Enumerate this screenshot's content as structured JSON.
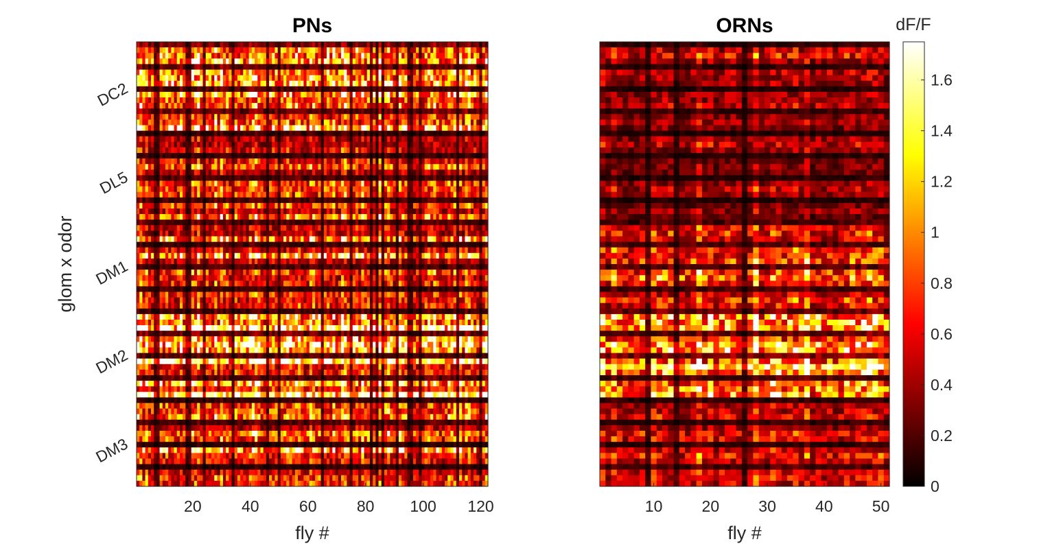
{
  "chart_data": [
    {
      "type": "heatmap",
      "title": "PNs",
      "xlabel": "fly #",
      "ylabel": "glom x odor",
      "x_range": [
        1,
        122
      ],
      "x_ticks": [
        20,
        40,
        60,
        80,
        100,
        120
      ],
      "y_tick_labels": [
        "DC2",
        "DL5",
        "DM1",
        "DM2",
        "DM3"
      ],
      "n_columns": 122,
      "n_rows": 80,
      "value_range": [
        0,
        1.75
      ],
      "note_on_values": "per-cell dF/F values not individually legible; rows grouped by glomerulus, brighter bands = stronger responses"
    },
    {
      "type": "heatmap",
      "title": "ORNs",
      "xlabel": "fly #",
      "x_range": [
        1,
        51
      ],
      "x_ticks": [
        10,
        20,
        30,
        40,
        50
      ],
      "n_columns": 51,
      "n_rows": 80,
      "value_range": [
        0,
        1.75
      ]
    }
  ],
  "colorbar": {
    "label": "dF/F",
    "colormap": "hot",
    "range": [
      0,
      1.75
    ],
    "ticks": [
      0,
      0.2,
      0.4,
      0.6,
      0.8,
      1,
      1.2,
      1.4,
      1.6
    ],
    "tick_labels": [
      "0",
      "0.2",
      "0.4",
      "0.6",
      "0.8",
      "1",
      "1.2",
      "1.4",
      "1.6"
    ]
  }
}
